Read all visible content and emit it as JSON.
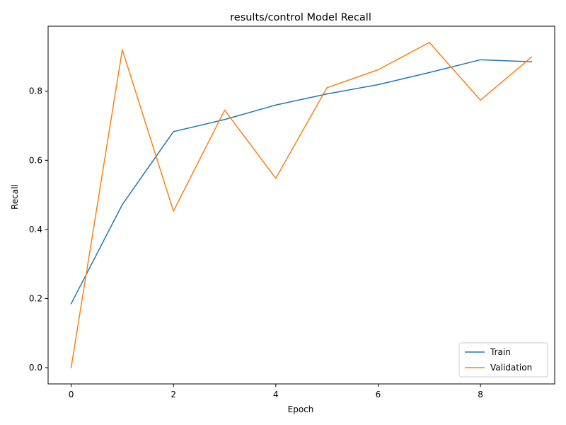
{
  "chart_data": {
    "type": "line",
    "title": "results/control Model Recall",
    "xlabel": "Epoch",
    "ylabel": "Recall",
    "xlim": [
      -0.45,
      9.45
    ],
    "ylim": [
      -0.047,
      0.988
    ],
    "xticks": [
      0,
      2,
      4,
      6,
      8
    ],
    "xtick_labels": [
      "0",
      "2",
      "4",
      "6",
      "8"
    ],
    "yticks": [
      0.0,
      0.2,
      0.4,
      0.6,
      0.8
    ],
    "ytick_labels": [
      "0.0",
      "0.2",
      "0.4",
      "0.6",
      "0.8"
    ],
    "grid": false,
    "legend_position": "bottom-right",
    "x": [
      0,
      1,
      2,
      3,
      4,
      5,
      6,
      7,
      8,
      9
    ],
    "series": [
      {
        "name": "Train",
        "color": "#1f77b4",
        "values": [
          0.185,
          0.472,
          0.683,
          0.718,
          0.76,
          0.792,
          0.819,
          0.854,
          0.891,
          0.885
        ]
      },
      {
        "name": "Validation",
        "color": "#ff7f0e",
        "values": [
          0.0,
          0.92,
          0.453,
          0.745,
          0.548,
          0.81,
          0.862,
          0.941,
          0.774,
          0.899
        ]
      }
    ]
  }
}
